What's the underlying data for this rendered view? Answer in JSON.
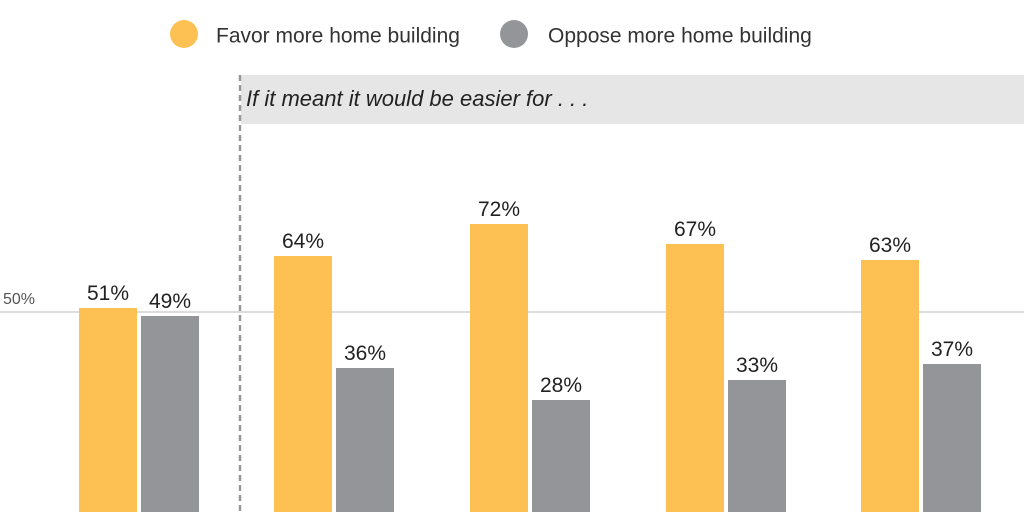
{
  "chart_data": {
    "type": "bar",
    "legend": {
      "placement": "top",
      "items": [
        {
          "label": "Favor more home building",
          "color": "#FDC153"
        },
        {
          "label": "Oppose more home building",
          "color": "#939598"
        }
      ]
    },
    "series": [
      {
        "name": "Favor more home building",
        "color": "#FDC153",
        "values": [
          51,
          64,
          72,
          67,
          63
        ]
      },
      {
        "name": "Oppose more home building",
        "color": "#939598",
        "values": [
          49,
          36,
          28,
          33,
          37
        ]
      }
    ],
    "value_labels": {
      "favor": [
        "51%",
        "64%",
        "72%",
        "67%",
        "63%"
      ],
      "oppose": [
        "49%",
        "36%",
        "28%",
        "33%",
        "37%"
      ]
    },
    "reference_line": {
      "value": 50,
      "label": "50%"
    },
    "section_label": "If it meant it would be easier for . . .",
    "banner_color": "#E6E6E6",
    "divider_color": "#999999"
  }
}
